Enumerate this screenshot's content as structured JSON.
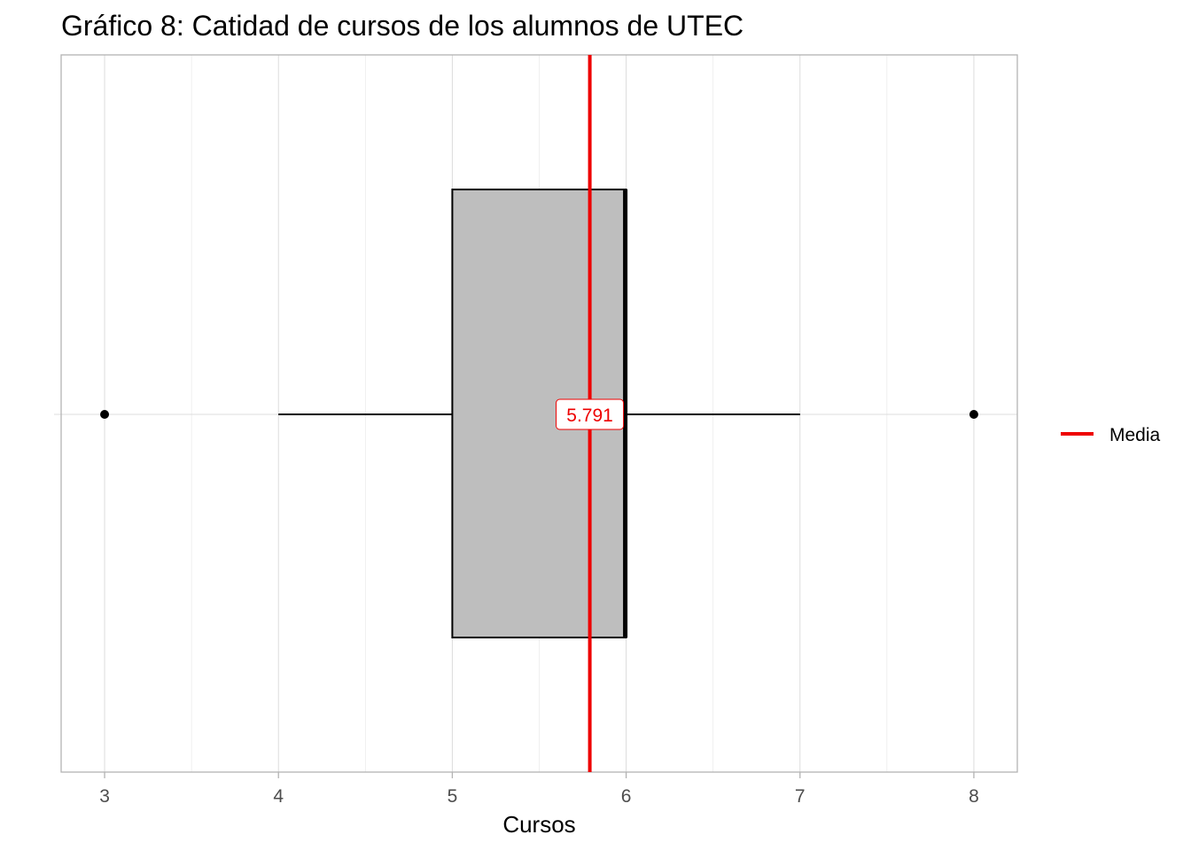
{
  "chart_data": {
    "type": "boxplot",
    "title": "Gráfico 8: Catidad de cursos de los alumnos de UTEC",
    "xlabel": "Cursos",
    "ylabel": "",
    "xlim": [
      2.75,
      8.25
    ],
    "x_ticks": [
      3,
      4,
      5,
      6,
      7,
      8
    ],
    "x_tick_labels": [
      "3",
      "4",
      "5",
      "6",
      "7",
      "8"
    ],
    "grid": true,
    "box": {
      "whisker_low": 4,
      "q1": 5,
      "median": 6,
      "q3": 6,
      "whisker_high": 7,
      "fill": "#bebebe",
      "outliers": [
        3,
        8
      ]
    },
    "mean": {
      "value": 5.791,
      "label": "5.791",
      "color": "#ee0000"
    },
    "legend": {
      "placement": "right",
      "entries": [
        {
          "label": "Media",
          "color": "#ee0000"
        }
      ]
    }
  }
}
